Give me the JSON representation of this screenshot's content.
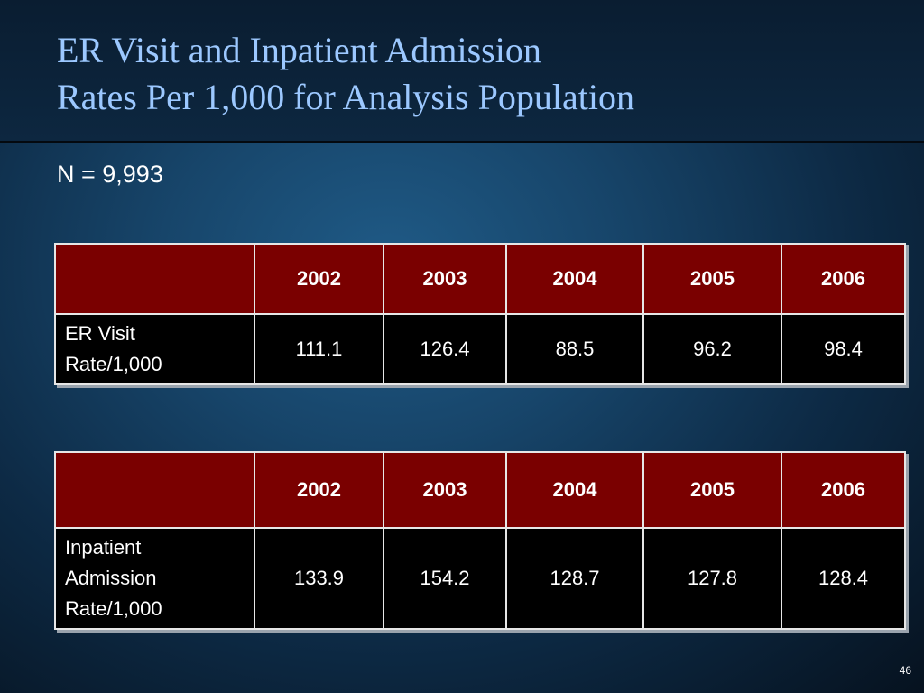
{
  "title": {
    "line1": "ER Visit and Inpatient Admission",
    "line2": "Rates Per 1,000 for Analysis Population"
  },
  "subtitle": "N = 9,993",
  "table1": {
    "headers": [
      "",
      "2002",
      "2003",
      "2004",
      "2005",
      "2006"
    ],
    "row_label_lines": [
      "ER Visit",
      "Rate/1,000"
    ],
    "values": [
      "111.1",
      "126.4",
      "88.5",
      "96.2",
      "98.4"
    ]
  },
  "table2": {
    "headers": [
      "",
      "2002",
      "2003",
      "2004",
      "2005",
      "2006"
    ],
    "row_label_lines": [
      "Inpatient",
      "Admission",
      "Rate/1,000"
    ],
    "values": [
      "133.9",
      "154.2",
      "128.7",
      "127.8",
      "128.4"
    ]
  },
  "colors": {
    "header_bg": "#7a0000",
    "body_bg": "#000000",
    "title_text": "#9cc8ff"
  },
  "page_number": "46"
}
